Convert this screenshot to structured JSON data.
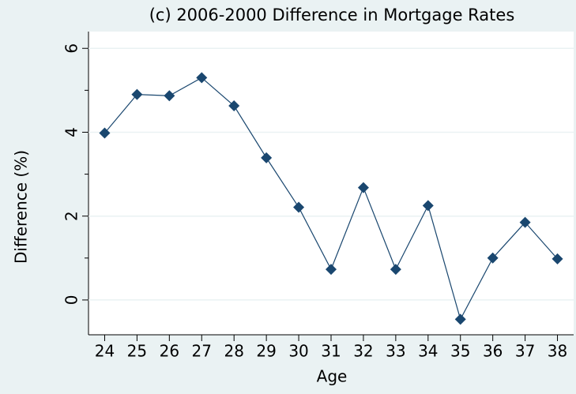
{
  "chart_data": {
    "type": "line",
    "title": "(c) 2006-2000 Difference in Mortgage Rates",
    "x_label": "Age",
    "y_label": "Difference (%)",
    "x": [
      24,
      25,
      26,
      27,
      28,
      29,
      30,
      31,
      32,
      33,
      34,
      35,
      36,
      37,
      38
    ],
    "series": [
      {
        "color": "#1a476f",
        "values": [
          3.98,
          4.9,
          4.87,
          5.3,
          4.63,
          3.39,
          2.21,
          0.73,
          2.68,
          0.73,
          2.25,
          -0.46,
          1.0,
          1.85,
          0.98
        ]
      }
    ],
    "xlim": [
      23.5,
      38.5
    ],
    "xticks": [
      24,
      25,
      26,
      27,
      28,
      29,
      30,
      31,
      32,
      33,
      34,
      35,
      36,
      37,
      38
    ],
    "ylim": [
      -0.83,
      6.4
    ],
    "yticks": [
      0,
      2,
      4,
      6
    ],
    "yminorticks": [
      1,
      3,
      5
    ],
    "grid": true,
    "marker": "diamond"
  }
}
